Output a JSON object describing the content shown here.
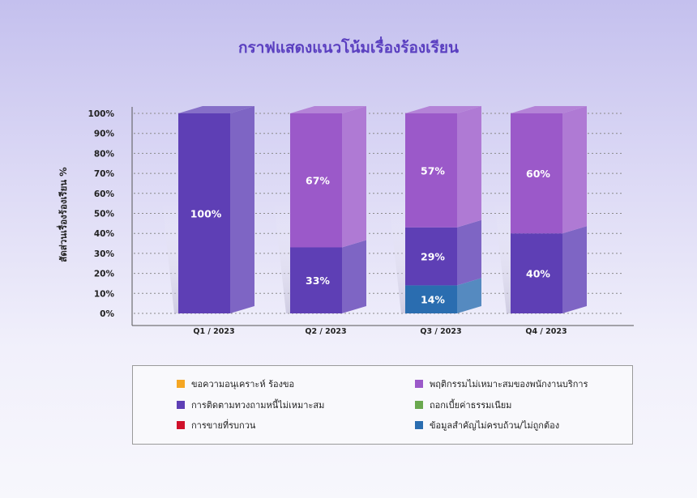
{
  "chart_data": {
    "type": "bar",
    "stacked": true,
    "title": "กราฟแสดงแนวโน้มเรื่องร้องเรียน",
    "ylabel": "สัดส่วนเรื่องร้องเรียน %",
    "xlabel": "",
    "ylim": [
      0,
      100
    ],
    "yticks": [
      "0%",
      "10%",
      "20%",
      "30%",
      "40%",
      "50%",
      "60%",
      "70%",
      "80%",
      "90%",
      "100%"
    ],
    "grid": true,
    "legend_position": "bottom",
    "categories": [
      "Q1 / 2023",
      "Q2 / 2023",
      "Q3 / 2023",
      "Q4 / 2023"
    ],
    "series": [
      {
        "name": "ขอความอนุเคราะห์ ร้องขอ",
        "color": "#f5a623",
        "values": [
          0,
          0,
          0,
          0
        ],
        "labels": [
          "",
          "",
          "",
          ""
        ]
      },
      {
        "name": "การติดตามทวงถามหนี้ไม่เหมาะสม",
        "color": "#5e3fb5",
        "values": [
          100,
          33,
          29,
          40
        ],
        "labels": [
          "100%",
          "33%",
          "29%",
          "40%"
        ]
      },
      {
        "name": "การขายที่รบกวน",
        "color": "#d0112b",
        "values": [
          0,
          0,
          0,
          0
        ],
        "labels": [
          "",
          "",
          "",
          ""
        ]
      },
      {
        "name": "พฤติกรรมไม่เหมาะสมของพนักงานบริการ",
        "color": "#9b59c9",
        "values": [
          0,
          67,
          57,
          60
        ],
        "labels": [
          "",
          "67%",
          "57%",
          "60%"
        ]
      },
      {
        "name": "ถอกเบี้ยค่าธรรมเนียม",
        "color": "#6aa84f",
        "values": [
          0,
          0,
          0,
          0
        ],
        "labels": [
          "",
          "",
          "",
          ""
        ]
      },
      {
        "name": "ข้อมูลสำคัญไม่ครบถ้วน/ไม่ถูกต้อง",
        "color": "#2a6db0",
        "values": [
          0,
          0,
          14,
          0
        ],
        "labels": [
          "",
          "",
          "14%",
          ""
        ]
      }
    ],
    "legend_order": [
      0,
      3,
      1,
      4,
      2,
      5
    ]
  }
}
